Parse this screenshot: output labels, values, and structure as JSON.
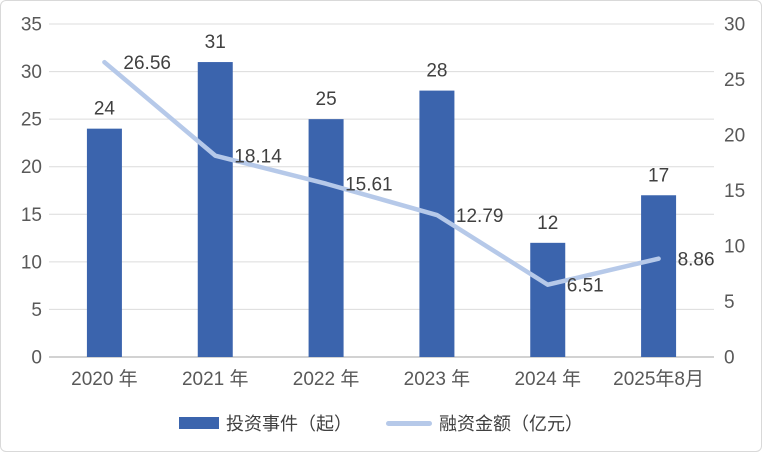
{
  "chart_data": {
    "type": "bar",
    "subtype": "combo-bar-line-dual-axis",
    "title": "",
    "categories": [
      "2020 年",
      "2021 年",
      "2022 年",
      "2023 年",
      "2024 年",
      "2025年8月"
    ],
    "series": [
      {
        "name": "投资事件（起）",
        "type": "bar",
        "axis": "left",
        "values": [
          24,
          31,
          25,
          28,
          12,
          17
        ]
      },
      {
        "name": "融资金额（亿元）",
        "type": "line",
        "axis": "right",
        "values": [
          26.56,
          18.14,
          15.61,
          12.79,
          6.51,
          8.86
        ]
      }
    ],
    "left_axis": {
      "min": 0,
      "max": 35,
      "step": 5,
      "ticks": [
        "0",
        "5",
        "10",
        "15",
        "20",
        "25",
        "30",
        "35"
      ]
    },
    "right_axis": {
      "min": 0,
      "max": 30,
      "step": 5,
      "ticks": [
        "0",
        "5",
        "10",
        "15",
        "20",
        "25",
        "30"
      ]
    },
    "grid": true,
    "data_labels": true,
    "legend_position": "bottom"
  },
  "colors": {
    "bar": "#3B64AD",
    "line": "#B6C9E9",
    "grid": "#DCDCDC",
    "axis_line": "#D2D2D2",
    "tick_text": "#595959",
    "label_text": "#404040",
    "border": "#D9D9D9",
    "background": "#FFFFFF"
  }
}
